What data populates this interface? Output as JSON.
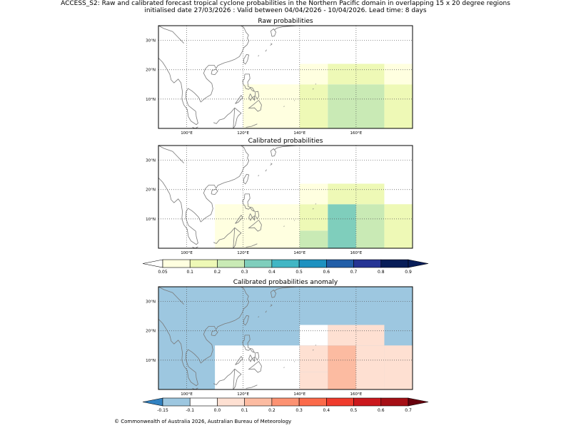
{
  "header": {
    "line1": "ACCESS_S2: Raw and calibrated forecast tropical cyclone probabilities in the Northern Pacific domain in overlapping 15 x 20 degree regions",
    "line2": "initialised date 27/03/2026 :  Valid between 04/04/2026 - 10/04/2026. Lead time: 8 days"
  },
  "footer": {
    "copyright": "© Commonwealth of Australia 2026, Australian Bureau of Meteorology"
  },
  "colors": {
    "coast": "#7a7a7a",
    "grid": "#555555",
    "prob_scale": [
      "#ffffe0",
      "#eef9b6",
      "#c9eab5",
      "#7fcebc",
      "#41b6c4",
      "#1d91c0",
      "#225ea8",
      "#253494",
      "#081d58"
    ],
    "anom_scale": [
      "#3282c2",
      "#9dc7e0",
      "#ffffff",
      "#fee0d2",
      "#fcbba1",
      "#fc9272",
      "#fb6a4a",
      "#ef3b2c",
      "#cb181d",
      "#a50f15"
    ],
    "prob_under": "#ffffff",
    "prob_over": "#081d58",
    "anom_under": "#3282c2",
    "anom_over": "#67000d"
  },
  "chart_data": [
    {
      "type": "heatmap",
      "title": "Raw probabilities",
      "xlim": [
        90,
        180
      ],
      "ylim": [
        0,
        35
      ],
      "xticks": [
        "100°E",
        "120°E",
        "140°E",
        "160°E"
      ],
      "xtick_values": [
        100,
        120,
        140,
        160
      ],
      "yticks": [
        "10°N",
        "20°N",
        "30°N"
      ],
      "ytick_values": [
        10,
        20,
        30
      ],
      "cells": [
        {
          "lon": [
            120,
            140
          ],
          "lat": [
            0,
            15
          ],
          "value": 0.07
        },
        {
          "lon": [
            140,
            150
          ],
          "lat": [
            0,
            15
          ],
          "value": 0.12
        },
        {
          "lon": [
            140,
            150
          ],
          "lat": [
            15,
            22
          ],
          "value": 0.08
        },
        {
          "lon": [
            150,
            170
          ],
          "lat": [
            0,
            15
          ],
          "value": 0.25
        },
        {
          "lon": [
            150,
            170
          ],
          "lat": [
            15,
            22
          ],
          "value": 0.15
        },
        {
          "lon": [
            170,
            180
          ],
          "lat": [
            0,
            15
          ],
          "value": 0.12
        },
        {
          "lon": [
            170,
            180
          ],
          "lat": [
            15,
            22
          ],
          "value": 0.08
        }
      ]
    },
    {
      "type": "heatmap",
      "title": "Calibrated probabilities",
      "xlim": [
        90,
        180
      ],
      "ylim": [
        0,
        35
      ],
      "xticks": [
        "100°E",
        "120°E",
        "140°E",
        "160°E"
      ],
      "xtick_values": [
        100,
        120,
        140,
        160
      ],
      "yticks": [
        "10°N",
        "20°N",
        "30°N"
      ],
      "ytick_values": [
        10,
        20,
        30
      ],
      "cells": [
        {
          "lon": [
            110,
            140
          ],
          "lat": [
            0,
            15
          ],
          "value": 0.07
        },
        {
          "lon": [
            140,
            150
          ],
          "lat": [
            0,
            6
          ],
          "value": 0.25
        },
        {
          "lon": [
            140,
            150
          ],
          "lat": [
            6,
            15
          ],
          "value": 0.12
        },
        {
          "lon": [
            140,
            150
          ],
          "lat": [
            15,
            22
          ],
          "value": 0.08
        },
        {
          "lon": [
            150,
            160
          ],
          "lat": [
            0,
            15
          ],
          "value": 0.35
        },
        {
          "lon": [
            160,
            170
          ],
          "lat": [
            0,
            15
          ],
          "value": 0.25
        },
        {
          "lon": [
            150,
            170
          ],
          "lat": [
            15,
            22
          ],
          "value": 0.15
        },
        {
          "lon": [
            170,
            180
          ],
          "lat": [
            0,
            15
          ],
          "value": 0.12
        }
      ],
      "colorbar": {
        "ticks": [
          "0.05",
          "0.1",
          "0.2",
          "0.3",
          "0.4",
          "0.5",
          "0.6",
          "0.7",
          "0.8",
          "0.9"
        ],
        "bounds": [
          0.05,
          0.1,
          0.2,
          0.3,
          0.4,
          0.5,
          0.6,
          0.7,
          0.8,
          0.9
        ]
      }
    },
    {
      "type": "heatmap",
      "title": "Calibrated probabilities anomaly",
      "xlim": [
        90,
        180
      ],
      "ylim": [
        0,
        35
      ],
      "xticks": [
        "100°E",
        "120°E",
        "140°E",
        "160°E"
      ],
      "xtick_values": [
        100,
        120,
        140,
        160
      ],
      "yticks": [
        "10°N",
        "20°N",
        "30°N"
      ],
      "ytick_values": [
        10,
        20,
        30
      ],
      "background_value": -0.12,
      "cells": [
        {
          "lon": [
            110,
            140
          ],
          "lat": [
            0,
            15
          ],
          "value": -0.05
        },
        {
          "lon": [
            140,
            150
          ],
          "lat": [
            15,
            22
          ],
          "value": -0.05
        },
        {
          "lon": [
            140,
            150
          ],
          "lat": [
            6,
            15
          ],
          "value": 0.0
        },
        {
          "lon": [
            140,
            150
          ],
          "lat": [
            0,
            6
          ],
          "value": 0.05
        },
        {
          "lon": [
            150,
            160
          ],
          "lat": [
            0,
            15
          ],
          "value": 0.15
        },
        {
          "lon": [
            160,
            170
          ],
          "lat": [
            0,
            15
          ],
          "value": 0.05
        },
        {
          "lon": [
            150,
            170
          ],
          "lat": [
            15,
            22
          ],
          "value": 0.0
        },
        {
          "lon": [
            170,
            180
          ],
          "lat": [
            0,
            15
          ],
          "value": 0.0
        }
      ],
      "colorbar": {
        "ticks": [
          "-0.15",
          "-0.1",
          "0.0",
          "0.1",
          "0.2",
          "0.3",
          "0.4",
          "0.5",
          "0.6",
          "0.7"
        ],
        "bounds": [
          -0.15,
          -0.1,
          0.0,
          0.1,
          0.2,
          0.3,
          0.4,
          0.5,
          0.6,
          0.7
        ]
      }
    }
  ]
}
